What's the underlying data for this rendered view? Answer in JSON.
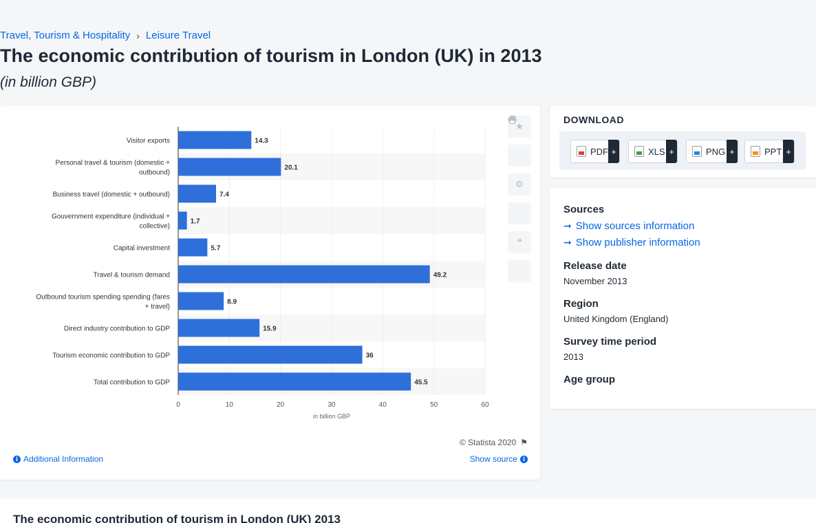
{
  "breadcrumb": {
    "items": [
      "Travel, Tourism & Hospitality",
      "Leisure Travel"
    ],
    "separator": "›"
  },
  "page": {
    "title": "The economic contribution of tourism in London (UK) in 2013",
    "subtitle": "(in billion GBP)"
  },
  "chart_data": {
    "type": "bar",
    "orientation": "horizontal",
    "categories": [
      "Visitor exports",
      "Personal travel & tourism (domestic + outbound)",
      "Business travel (domestic + outbound)",
      "Gouvernment expenditure (individual + collective)",
      "Capital investment",
      "Travel & tourism demand",
      "Outbound tourism spending spending (fares + travel)",
      "Direct industry contribution to GDP",
      "Tourism economic contribution to GDP",
      "Total contribution to GDP"
    ],
    "category_lines": [
      [
        "Visitor exports"
      ],
      [
        "Personal travel & tourism (domestic +",
        "outbound)"
      ],
      [
        "Business travel (domestic + outbound)"
      ],
      [
        "Gouvernment expenditure (individual +",
        "collective)"
      ],
      [
        "Capital investment"
      ],
      [
        "Travel & tourism demand"
      ],
      [
        "Outbound tourism spending spending (fares",
        "+ travel)"
      ],
      [
        "Direct industry contribution to GDP"
      ],
      [
        "Tourism economic contribution to GDP"
      ],
      [
        "Total contribution to GDP"
      ]
    ],
    "values": [
      14.3,
      20.1,
      7.4,
      1.7,
      5.7,
      49.2,
      8.9,
      15.9,
      36,
      45.5
    ],
    "value_labels": [
      "14.3",
      "20.1",
      "7.4",
      "1.7",
      "5.7",
      "49.2",
      "8.9",
      "15.9",
      "36",
      "45.5"
    ],
    "xlabel": "in billion GBP",
    "xlim": [
      0,
      60
    ],
    "xticks": [
      0,
      10,
      20,
      30,
      40,
      50,
      60
    ],
    "grid": true,
    "bar_color": "#2f6fd9"
  },
  "chart_footer": {
    "credit": "© Statista 2020",
    "additional_info": "Additional Information",
    "show_source": "Show source"
  },
  "toolbar_icons": [
    "star-icon",
    "bell-icon",
    "gear-icon",
    "share-icon",
    "quote-icon",
    "print-icon"
  ],
  "download": {
    "title": "DOWNLOAD",
    "buttons": [
      {
        "label": "PDF",
        "icon": "pdf-file-icon"
      },
      {
        "label": "XLS",
        "icon": "xls-file-icon"
      },
      {
        "label": "PNG",
        "icon": "png-file-icon"
      },
      {
        "label": "PPT",
        "icon": "ppt-file-icon"
      }
    ],
    "plus": "+"
  },
  "meta": {
    "sources_heading": "Sources",
    "show_sources": "Show sources information",
    "show_publisher": "Show publisher information",
    "release_heading": "Release date",
    "release_value": "November 2013",
    "region_heading": "Region",
    "region_value": "United Kingdom (England)",
    "survey_heading": "Survey time period",
    "survey_value": "2013",
    "age_heading": "Age group"
  },
  "bottom": {
    "title": "The economic contribution of tourism in London (UK) 2013"
  }
}
